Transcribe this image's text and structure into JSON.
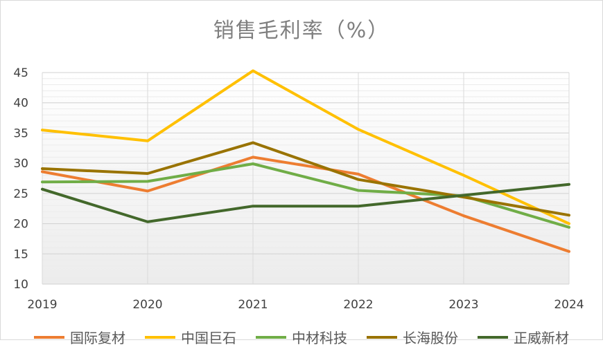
{
  "chart_data": {
    "type": "line",
    "title": "销售毛利率（%）",
    "xlabel": "",
    "ylabel": "",
    "categories": [
      "2019",
      "2020",
      "2021",
      "2022",
      "2023",
      "2024"
    ],
    "ylim": [
      10,
      45
    ],
    "yticks": [
      10,
      15,
      20,
      25,
      30,
      35,
      40,
      45
    ],
    "grid": true,
    "legend_position": "bottom",
    "series": [
      {
        "name": "国际复材",
        "color": "#ED7D31",
        "values": [
          28.6,
          25.4,
          31.0,
          28.2,
          21.3,
          15.4
        ]
      },
      {
        "name": "中国巨石",
        "color": "#FFC000",
        "values": [
          35.5,
          33.7,
          45.3,
          35.6,
          28.0,
          20.0
        ]
      },
      {
        "name": "中材科技",
        "color": "#70AD47",
        "values": [
          26.9,
          27.0,
          29.9,
          25.5,
          24.6,
          19.4
        ]
      },
      {
        "name": "长海股份",
        "color": "#997300",
        "values": [
          29.1,
          28.3,
          33.4,
          27.3,
          24.4,
          21.4
        ]
      },
      {
        "name": "正威新材",
        "color": "#43682B",
        "values": [
          25.7,
          20.3,
          22.9,
          22.9,
          24.7,
          26.5
        ]
      }
    ]
  }
}
